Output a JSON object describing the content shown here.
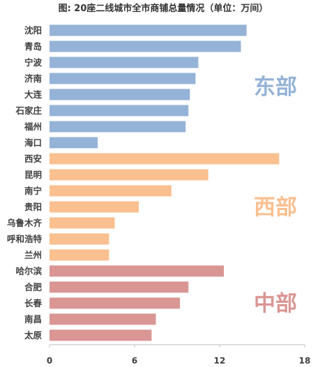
{
  "chart_data": {
    "type": "bar",
    "orientation": "horizontal",
    "title": "图: 20座二线城市全市商铺总量情况（单位：万间）",
    "categories": [
      "沈阳",
      "青岛",
      "宁波",
      "济南",
      "大连",
      "石家庄",
      "福州",
      "海口",
      "西安",
      "昆明",
      "南宁",
      "贵阳",
      "乌鲁木齐",
      "呼和浩特",
      "兰州",
      "哈尔滨",
      "合肥",
      "长春",
      "南昌",
      "太原"
    ],
    "values": [
      13.9,
      13.5,
      10.5,
      10.3,
      9.9,
      9.8,
      9.6,
      3.4,
      16.2,
      11.2,
      8.6,
      6.3,
      4.6,
      4.2,
      4.2,
      12.3,
      9.8,
      9.2,
      7.5,
      7.2
    ],
    "groups": [
      {
        "name": "东部",
        "count": 8,
        "color": "#95b3d7"
      },
      {
        "name": "西部",
        "count": 7,
        "color": "#fac090"
      },
      {
        "name": "中部",
        "count": 5,
        "color": "#d99694"
      }
    ],
    "xlim": [
      0,
      18
    ],
    "xticks": [
      "0",
      "6",
      "12",
      "18"
    ],
    "grid": false
  }
}
